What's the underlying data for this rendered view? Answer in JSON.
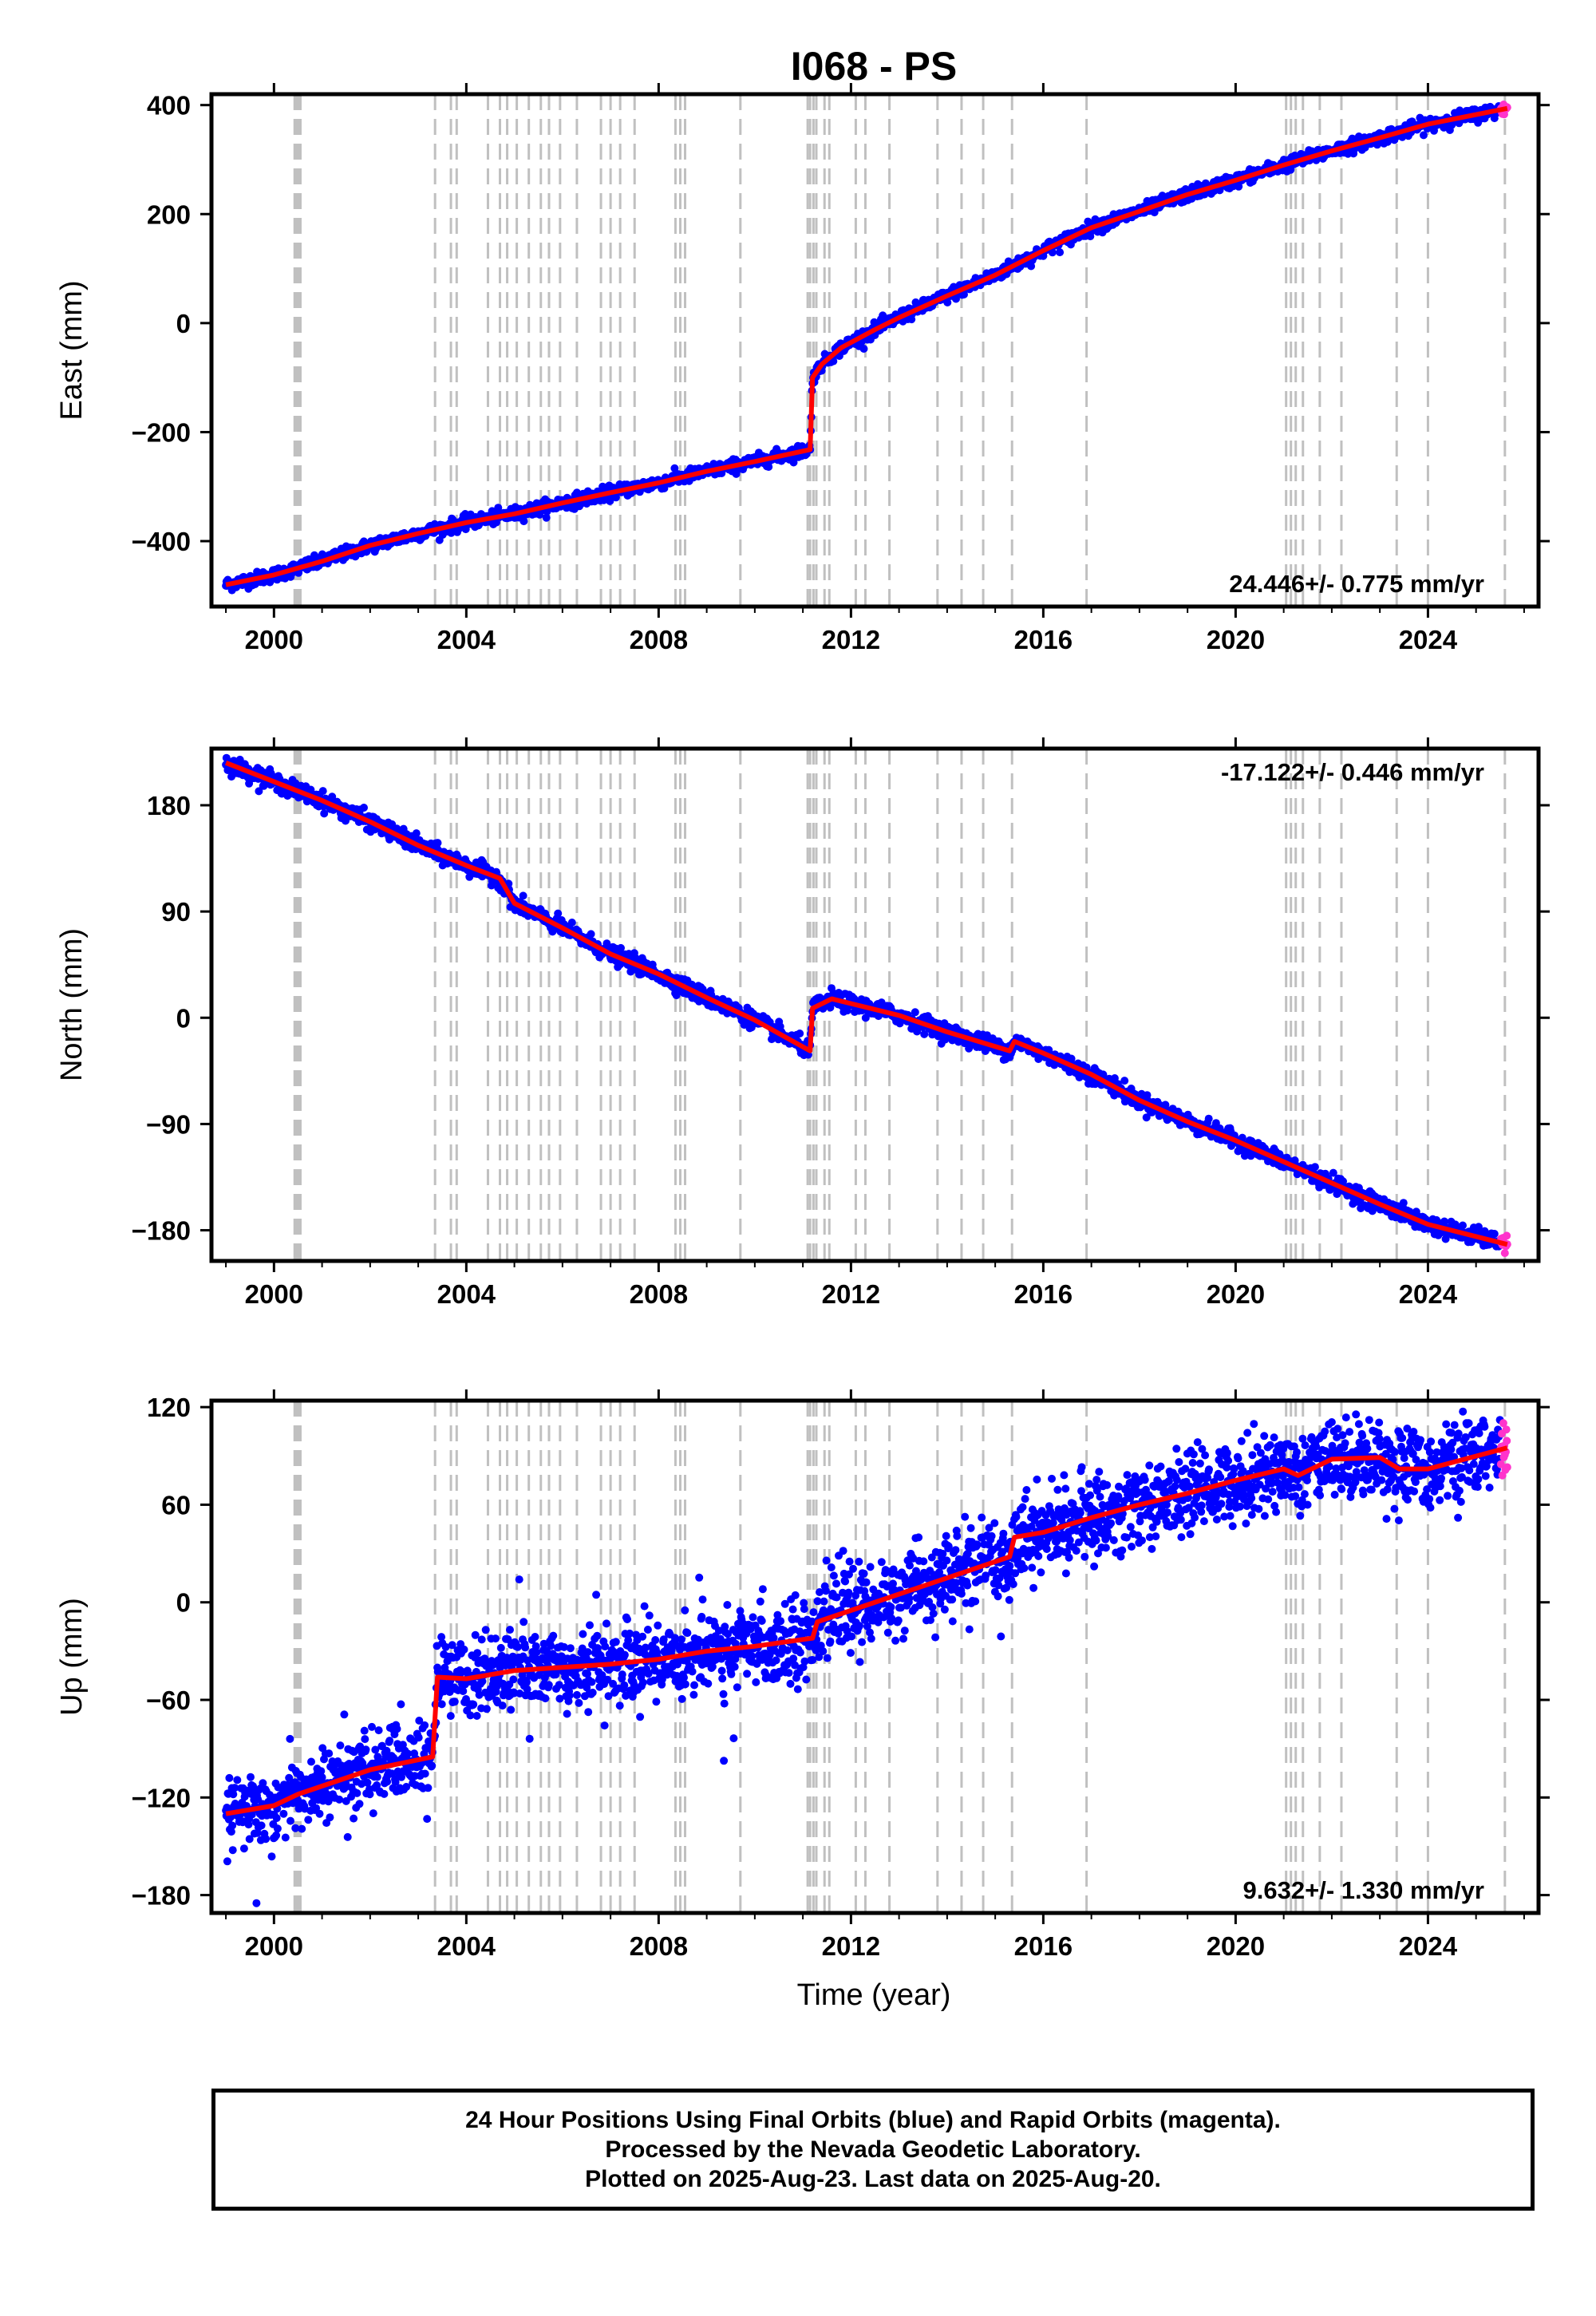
{
  "title": "I068 - PS",
  "xlabel": "Time (year)",
  "footer": {
    "line1": "24 Hour Positions Using Final Orbits (blue) and Rapid Orbits (magenta).",
    "line2": "Processed by the Nevada Geodetic Laboratory.",
    "line3": "Plotted on 2025-Aug-23. Last data on 2025-Aug-20."
  },
  "colors": {
    "final_orbits": "#0000ff",
    "rapid_orbits": "#ff33cc",
    "model": "#ff0000",
    "event_lines": "#c0c0c0"
  },
  "chart_data": [
    {
      "type": "scatter",
      "component": "east",
      "ylabel": "East (mm)",
      "xlim": [
        1998.7,
        2026.3
      ],
      "ylim": [
        -520,
        420
      ],
      "xticks": [
        2000,
        2004,
        2008,
        2012,
        2016,
        2020,
        2024
      ],
      "yticks": [
        -400,
        -200,
        0,
        200,
        400
      ],
      "rate_label": "24.446+/- 0.775 mm/yr",
      "rate_position": "bottom-right",
      "model": [
        [
          1999.0,
          -480
        ],
        [
          2000.0,
          -462
        ],
        [
          2001.0,
          -437
        ],
        [
          2002.0,
          -408
        ],
        [
          2003.0,
          -386
        ],
        [
          2004.0,
          -366
        ],
        [
          2005.0,
          -350
        ],
        [
          2006.0,
          -330
        ],
        [
          2007.0,
          -311
        ],
        [
          2008.0,
          -293
        ],
        [
          2009.0,
          -272
        ],
        [
          2010.0,
          -254
        ],
        [
          2011.15,
          -232
        ],
        [
          2011.2,
          -100
        ],
        [
          2011.4,
          -75
        ],
        [
          2011.8,
          -45
        ],
        [
          2012.5,
          -12
        ],
        [
          2013.0,
          10
        ],
        [
          2014.0,
          50
        ],
        [
          2015.0,
          88
        ],
        [
          2016.0,
          133
        ],
        [
          2017.0,
          175
        ],
        [
          2018.0,
          205
        ],
        [
          2019.0,
          236
        ],
        [
          2020.0,
          262
        ],
        [
          2021.0,
          290
        ],
        [
          2022.0,
          316
        ],
        [
          2023.0,
          340
        ],
        [
          2024.0,
          365
        ],
        [
          2025.65,
          394
        ]
      ]
    },
    {
      "type": "scatter",
      "component": "north",
      "ylabel": "North (mm)",
      "xlim": [
        1998.7,
        2026.3
      ],
      "ylim": [
        -206,
        228
      ],
      "xticks": [
        2000,
        2004,
        2008,
        2012,
        2016,
        2020,
        2024
      ],
      "yticks": [
        -180,
        -90,
        0,
        90,
        180
      ],
      "rate_label": "-17.122+/- 0.446 mm/yr",
      "rate_position": "top-right",
      "model": [
        [
          1999.0,
          216
        ],
        [
          2000.0,
          200
        ],
        [
          2001.0,
          184
        ],
        [
          2002.0,
          166
        ],
        [
          2003.0,
          146
        ],
        [
          2004.0,
          129
        ],
        [
          2004.7,
          118
        ],
        [
          2005.0,
          97
        ],
        [
          2006.0,
          76
        ],
        [
          2007.0,
          54
        ],
        [
          2008.0,
          37
        ],
        [
          2009.0,
          17
        ],
        [
          2010.0,
          -2
        ],
        [
          2011.15,
          -28
        ],
        [
          2011.2,
          8
        ],
        [
          2011.6,
          16
        ],
        [
          2012.0,
          12
        ],
        [
          2013.0,
          2
        ],
        [
          2014.0,
          -12
        ],
        [
          2015.3,
          -28
        ],
        [
          2015.4,
          -20
        ],
        [
          2016.0,
          -30
        ],
        [
          2017.0,
          -48
        ],
        [
          2018.0,
          -70
        ],
        [
          2019.0,
          -88
        ],
        [
          2020.0,
          -104
        ],
        [
          2021.0,
          -122
        ],
        [
          2022.0,
          -140
        ],
        [
          2023.0,
          -158
        ],
        [
          2024.0,
          -175
        ],
        [
          2025.65,
          -192
        ]
      ]
    },
    {
      "type": "scatter",
      "component": "up",
      "ylabel": "Up (mm)",
      "xlim": [
        1998.7,
        2026.3
      ],
      "ylim": [
        -191,
        124
      ],
      "xticks": [
        2000,
        2004,
        2008,
        2012,
        2016,
        2020,
        2024
      ],
      "yticks": [
        -180,
        -120,
        -60,
        0,
        60,
        120
      ],
      "rate_label": "9.632+/- 1.330 mm/yr",
      "rate_position": "bottom-right",
      "model": [
        [
          1999.0,
          -130
        ],
        [
          2000.0,
          -125
        ],
        [
          2000.5,
          -118
        ],
        [
          2001.0,
          -113
        ],
        [
          2002.0,
          -103
        ],
        [
          2003.3,
          -95
        ],
        [
          2003.4,
          -46
        ],
        [
          2004.0,
          -47
        ],
        [
          2005.0,
          -42
        ],
        [
          2006.0,
          -40
        ],
        [
          2007.0,
          -38
        ],
        [
          2008.0,
          -35
        ],
        [
          2009.0,
          -30
        ],
        [
          2010.0,
          -27
        ],
        [
          2011.2,
          -22
        ],
        [
          2011.3,
          -12
        ],
        [
          2012.0,
          -5
        ],
        [
          2013.0,
          5
        ],
        [
          2014.0,
          15
        ],
        [
          2015.3,
          28
        ],
        [
          2015.4,
          40
        ],
        [
          2016.0,
          43
        ],
        [
          2017.0,
          52
        ],
        [
          2018.0,
          60
        ],
        [
          2019.0,
          67
        ],
        [
          2020.0,
          75
        ],
        [
          2021.0,
          82
        ],
        [
          2021.3,
          78
        ],
        [
          2022.0,
          88
        ],
        [
          2023.0,
          89
        ],
        [
          2023.4,
          82
        ],
        [
          2024.0,
          82
        ],
        [
          2025.65,
          95
        ]
      ]
    }
  ],
  "event_years": [
    2000.43,
    2000.46,
    2000.49,
    2000.52,
    2000.55,
    2003.35,
    2003.68,
    2003.8,
    2004.45,
    2004.7,
    2004.85,
    2005.05,
    2005.3,
    2005.55,
    2005.72,
    2005.95,
    2006.3,
    2006.8,
    2007.0,
    2007.2,
    2007.5,
    2008.35,
    2008.45,
    2008.55,
    2009.7,
    2011.1,
    2011.15,
    2011.22,
    2011.28,
    2011.45,
    2011.55,
    2012.1,
    2012.3,
    2012.8,
    2013.8,
    2014.3,
    2014.75,
    2015.35,
    2016.9,
    2021.05,
    2021.15,
    2021.25,
    2021.4,
    2021.75,
    2022.2,
    2023.35,
    2024.0,
    2025.6
  ],
  "rapid_start": 2025.5
}
